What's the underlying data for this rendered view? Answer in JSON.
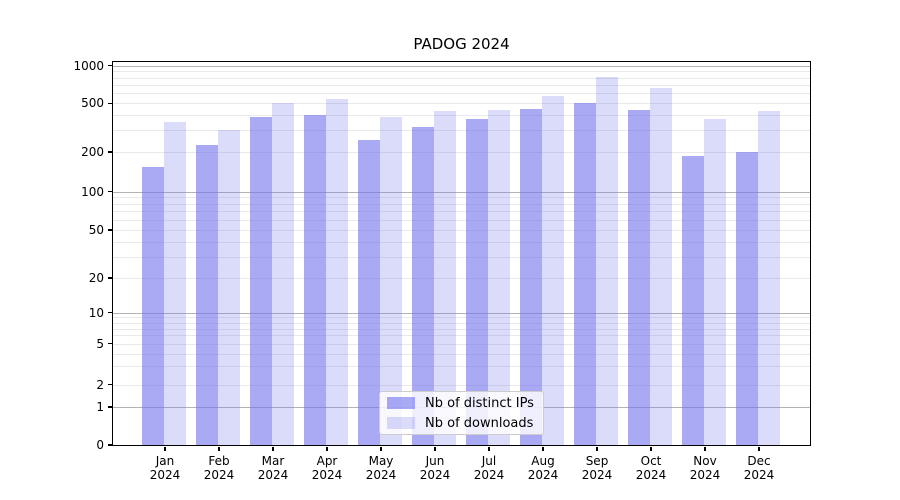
{
  "title": "PADOG 2024",
  "chart_data": {
    "type": "bar",
    "title": "PADOG 2024",
    "yscale": "symlog (logarithmic 1-1000, linear 0-1)",
    "ylim": [
      0,
      1000
    ],
    "y_ticks": [
      0,
      1,
      2,
      5,
      10,
      20,
      50,
      100,
      200,
      500,
      1000
    ],
    "y_tick_labels": [
      "0",
      "1",
      "2",
      "5",
      "10",
      "20",
      "50",
      "100",
      "200",
      "500",
      "1000"
    ],
    "categories": [
      "Jan 2024",
      "Feb 2024",
      "Mar 2024",
      "Apr 2024",
      "May 2024",
      "Jun 2024",
      "Jul 2024",
      "Aug 2024",
      "Sep 2024",
      "Oct 2024",
      "Nov 2024",
      "Dec 2024"
    ],
    "series": [
      {
        "name": "Nb of distinct IPs",
        "color": "rgba(112,112,237,0.6)",
        "values": [
          155,
          230,
          385,
          400,
          250,
          320,
          370,
          450,
          500,
          445,
          186,
          200
        ]
      },
      {
        "name": "Nb of downloads",
        "color": "rgba(112,112,237,0.25)",
        "values": [
          350,
          300,
          500,
          545,
          385,
          435,
          440,
          575,
          805,
          660,
          375,
          430
        ]
      }
    ],
    "grid": true,
    "legend_position": "lower center inside plot"
  },
  "colors": {
    "bar_base": "#7070ed",
    "distinct_ips_fill": "rgba(112,112,237,0.6)",
    "downloads_fill": "rgba(112,112,237,0.25)",
    "major_grid": "#b3b3b3",
    "minor_grid": "#e9e9e9",
    "axis": "#000000",
    "legend_border": "#cccccc",
    "legend_bg": "rgba(255,255,255,0.8)",
    "text": "#000000"
  }
}
